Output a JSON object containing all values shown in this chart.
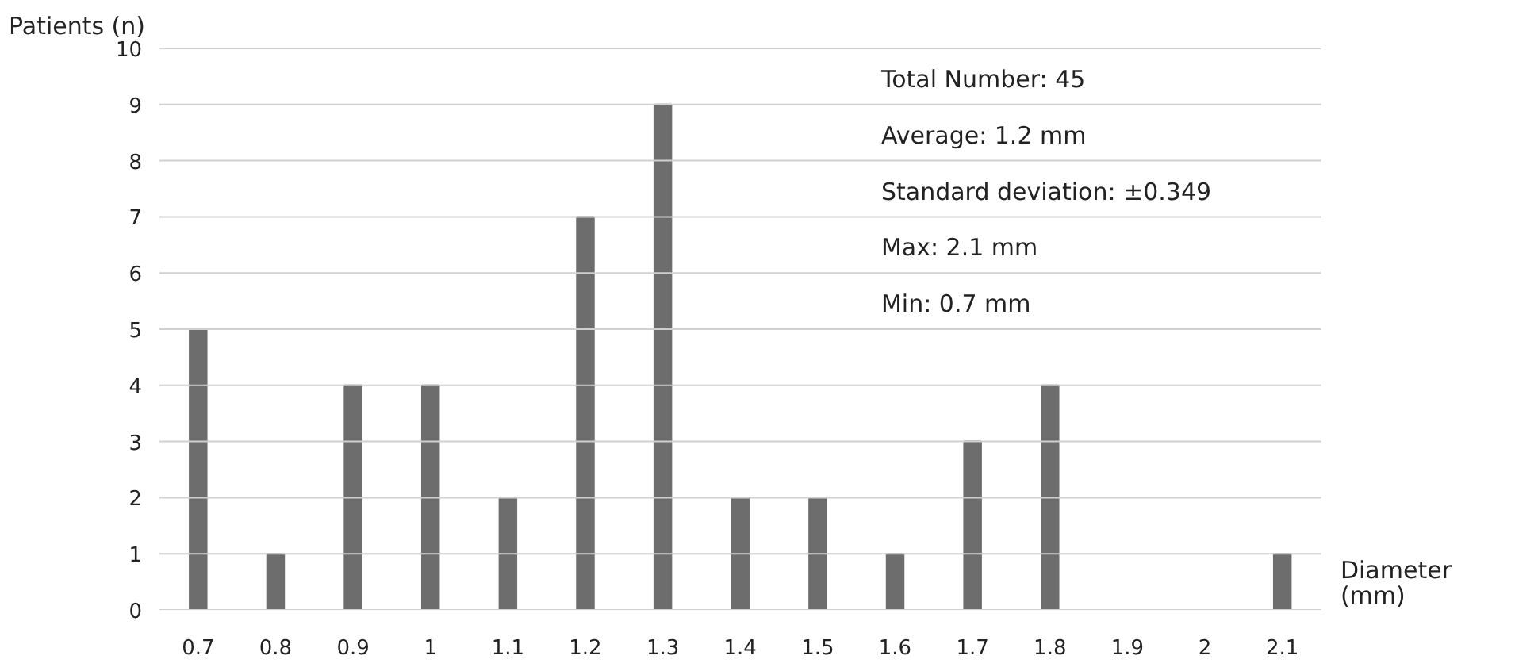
{
  "chart_data": {
    "type": "bar",
    "ylabel": "Patients (n)",
    "xlabel": "Diameter (mm)",
    "categories": [
      "0.7",
      "0.8",
      "0.9",
      "1",
      "1.1",
      "1.2",
      "1.3",
      "1.4",
      "1.5",
      "1.6",
      "1.7",
      "1.8",
      "1.9",
      "2",
      "2.1"
    ],
    "values": [
      5,
      1,
      4,
      4,
      2,
      7,
      9,
      2,
      2,
      1,
      3,
      4,
      0,
      0,
      1
    ],
    "color": "#6d6d6d",
    "ylim": [
      0,
      10
    ],
    "yticks": [
      0,
      1,
      2,
      3,
      4,
      5,
      6,
      7,
      8,
      9,
      10
    ],
    "grid": "y",
    "annotations": [
      "Total Number: 45",
      "Average: 1.2 mm",
      "Standard deviation: ±0.349",
      "Max: 2.1 mm",
      "Min: 0.7 mm"
    ]
  }
}
